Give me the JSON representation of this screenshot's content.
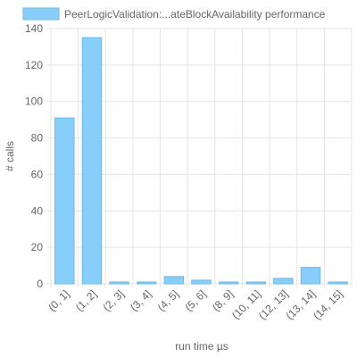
{
  "chart_data": {
    "type": "bar",
    "legend": {
      "label": "PeerLogicValidation:...ateBlockAvailability performance",
      "position": "top",
      "color": "#87cefa"
    },
    "xlabel": "run time µs",
    "ylabel": "# calls",
    "categories": [
      "(0, 1]",
      "(1, 2]",
      "(2, 3]",
      "(3, 4]",
      "(4, 5]",
      "(5, 6]",
      "(8, 9]",
      "(10, 11]",
      "(12, 13]",
      "(13, 14]",
      "(14, 15]"
    ],
    "series": [
      {
        "values": [
          91,
          135,
          1,
          1,
          4,
          2,
          1,
          1,
          3,
          9,
          1
        ]
      }
    ],
    "ylim": [
      0,
      140
    ],
    "yticks": [
      0,
      20,
      40,
      60,
      80,
      100,
      120,
      140
    ],
    "grid": true,
    "bar_color": "#87cefa"
  }
}
